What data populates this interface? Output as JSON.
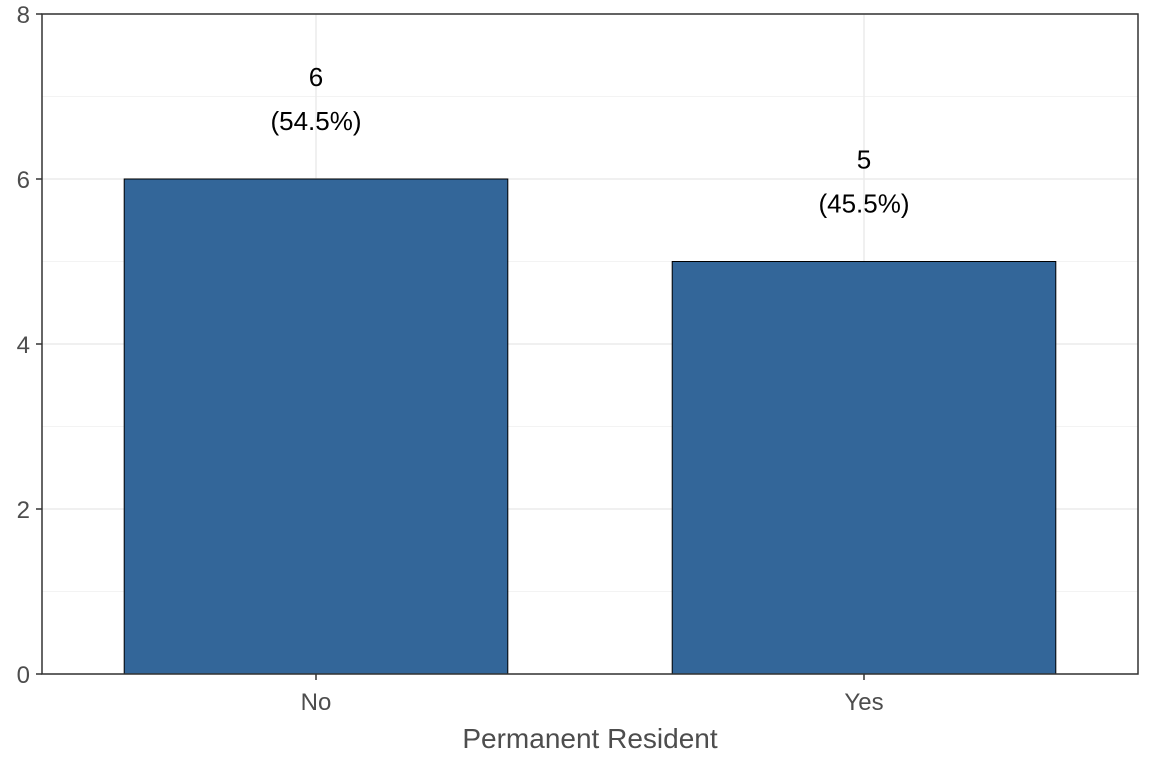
{
  "chart_data": {
    "type": "bar",
    "categories": [
      "No",
      "Yes"
    ],
    "values": [
      6,
      5
    ],
    "value_labels": [
      "6",
      "5"
    ],
    "percent_labels": [
      "(54.5%)",
      "(45.5%)"
    ],
    "title": "",
    "xlabel": "Permanent Resident",
    "ylabel": "",
    "ylim": [
      0,
      8
    ],
    "yticks": [
      0,
      2,
      4,
      6,
      8
    ],
    "ytick_labels": [
      "0",
      "2",
      "4",
      "6",
      "8"
    ],
    "grid": true,
    "legend": "none"
  },
  "colors": {
    "bar_fill": "#336699",
    "bar_stroke": "#000000",
    "grid_major": "#ebebeb",
    "grid_minor": "#f3f3f3",
    "panel_border": "#333333"
  }
}
